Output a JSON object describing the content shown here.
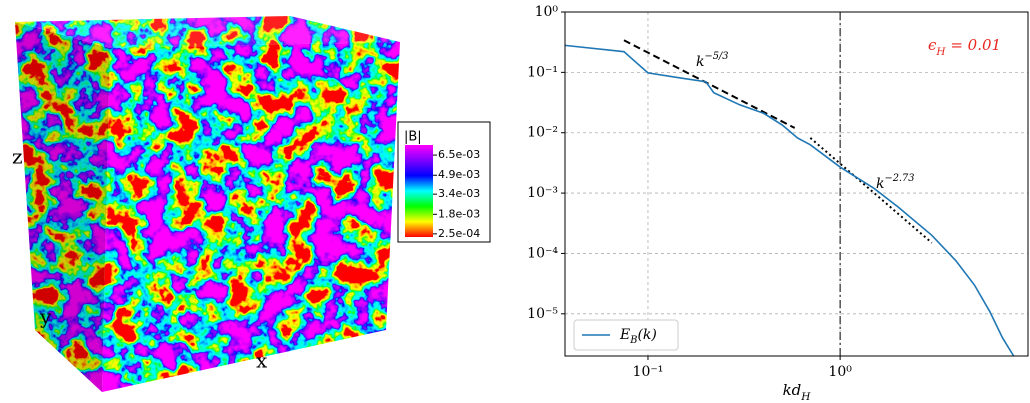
{
  "chart_data": [
    {
      "type": "volume",
      "axis_labels": {
        "x": "x",
        "y": "y",
        "z": "z"
      },
      "colorbar": {
        "label": "|B|",
        "clim": [
          0,
          0.0073
        ],
        "ticks": [
          {
            "value": 0.0065,
            "label": "6.5e-03"
          },
          {
            "value": 0.0049,
            "label": "4.9e-03"
          },
          {
            "value": 0.0034,
            "label": "3.4e-03"
          },
          {
            "value": 0.0018,
            "label": "1.8e-03"
          },
          {
            "value": 0.00025,
            "label": "2.5e-04"
          }
        ],
        "colors": [
          "#ff0000",
          "#ffff00",
          "#00ff00",
          "#00ffff",
          "#0000ff",
          "#8000ff",
          "#ff00ff"
        ]
      }
    },
    {
      "type": "line",
      "xlog": true,
      "ylog": true,
      "xlim": [
        0.037,
        9.5
      ],
      "ylim": [
        2e-06,
        1
      ],
      "xticks": [
        {
          "value": 0.1,
          "label": "10⁻¹"
        },
        {
          "value": 1,
          "label": "10⁰"
        }
      ],
      "yticks": [
        {
          "value": 1e-05,
          "label": "10⁻⁵"
        },
        {
          "value": 0.0001,
          "label": "10⁻⁴"
        },
        {
          "value": 0.001,
          "label": "10⁻³"
        },
        {
          "value": 0.01,
          "label": "10⁻²"
        },
        {
          "value": 0.1,
          "label": "10⁻¹"
        },
        {
          "value": 1,
          "label": "10⁰"
        }
      ],
      "grid": true,
      "xlabel": [
        "kd",
        "H"
      ],
      "legend": "lower left",
      "series": [
        {
          "name": [
            "E",
            "B",
            "(k)"
          ],
          "color": "#1f77b4",
          "x": [
            0.037,
            0.075,
            0.1,
            0.15,
            0.2,
            0.22,
            0.3,
            0.4,
            0.5,
            0.6,
            0.7,
            1,
            1.5,
            2,
            3,
            4,
            5,
            6,
            7,
            8
          ],
          "values": [
            0.28,
            0.22,
            0.098,
            0.08,
            0.07,
            0.046,
            0.029,
            0.021,
            0.0134,
            0.0082,
            0.0063,
            0.0027,
            0.0012,
            0.00059,
            0.0002,
            7.6e-05,
            3e-05,
            1.1e-05,
            4e-06,
            2e-06
          ]
        }
      ],
      "reference_lines": [
        {
          "style": "dashed",
          "x": [
            0.075,
            0.58
          ],
          "values": [
            0.34,
            0.012
          ],
          "label": [
            "k",
            "−5/3"
          ]
        },
        {
          "style": "dotted",
          "x": [
            0.7,
            3
          ],
          "values": [
            0.0082,
            0.00015
          ],
          "label": [
            "k",
            "−2.73"
          ]
        }
      ],
      "vline": {
        "x": 1,
        "style": "dashdot"
      },
      "annotation": [
        "ϵ",
        "H",
        " = 0.01"
      ],
      "annotation_color": "#e8271f"
    }
  ]
}
